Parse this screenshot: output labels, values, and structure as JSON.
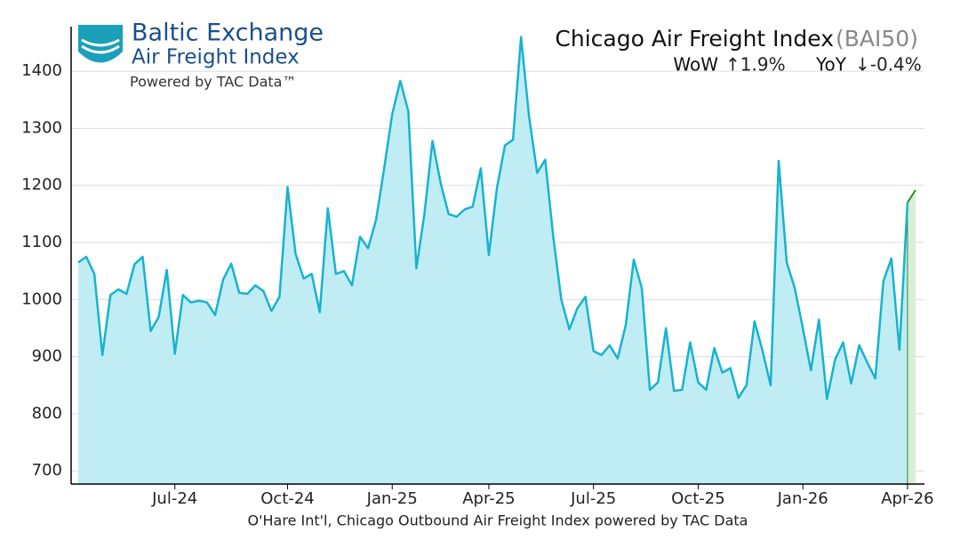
{
  "chart_data": {
    "type": "line",
    "title": "Chicago Air Freight Index",
    "title_code": "(BAI50)",
    "wow_label": "WoW",
    "wow_value": "↑1.9%",
    "yoy_label": "YoY",
    "yoy_value": "↓-0.4%",
    "brand": "Baltic Exchange",
    "brand_sub": "Air Freight Index",
    "brand_powered": "Powered by TAC Data™",
    "x_label": "O'Hare Int'l, Chicago Outbound Air Freight Index powered by TAC Data",
    "categories": [
      null,
      null,
      null,
      null,
      null,
      null,
      null,
      null,
      null,
      null,
      null,
      null,
      "Jul-24",
      null,
      null,
      null,
      null,
      null,
      null,
      null,
      null,
      null,
      null,
      null,
      null,
      null,
      "Oct-24",
      null,
      null,
      null,
      null,
      null,
      null,
      null,
      null,
      null,
      null,
      null,
      null,
      "Jan-25",
      null,
      null,
      null,
      null,
      null,
      null,
      null,
      null,
      null,
      null,
      null,
      "Apr-25",
      null,
      null,
      null,
      null,
      null,
      null,
      null,
      null,
      null,
      null,
      null,
      null,
      "Jul-25",
      null,
      null,
      null,
      null,
      null,
      null,
      null,
      null,
      null,
      null,
      null,
      null,
      "Oct-25",
      null,
      null,
      null,
      null,
      null,
      null,
      null,
      null,
      null,
      null,
      null,
      null,
      "Jan-26",
      null,
      null,
      null,
      null,
      null,
      null,
      null,
      null,
      null,
      null,
      null,
      null,
      "Apr-26",
      null
    ],
    "values": [
      1065,
      1075,
      1045,
      903,
      1008,
      1018,
      1010,
      1062,
      1075,
      945,
      970,
      1052,
      905,
      1008,
      995,
      998,
      995,
      973,
      1035,
      1063,
      1012,
      1010,
      1025,
      1015,
      980,
      1005,
      1197,
      1080,
      1037,
      1045,
      978,
      1160,
      1045,
      1050,
      1025,
      1110,
      1090,
      1140,
      1230,
      1325,
      1383,
      1330,
      1055,
      1150,
      1278,
      1205,
      1150,
      1145,
      1158,
      1163,
      1230,
      1078,
      1195,
      1270,
      1280,
      1460,
      1320,
      1222,
      1245,
      1110,
      1000,
      948,
      985,
      1005,
      910,
      903,
      920,
      897,
      955,
      1070,
      1020,
      842,
      855,
      950,
      840,
      842,
      925,
      855,
      842,
      915,
      872,
      880,
      828,
      850,
      962,
      910,
      850,
      1243,
      1065,
      1020,
      950,
      876,
      965,
      826,
      895,
      925,
      853,
      920,
      890,
      862,
      1032,
      1072,
      912,
      1170,
      1192
    ],
    "color": "#17b3cf",
    "fill_color": "#bdebf3",
    "latest_color": "#2e8b2e",
    "latest_fill": "#d9eed6",
    "wow_color": "#1a8a1a",
    "yoy_color": "#e01010",
    "ylim": [
      677,
      1478
    ],
    "yticks": [
      700,
      800,
      900,
      1000,
      1100,
      1200,
      1300,
      1400
    ],
    "grid": true
  }
}
